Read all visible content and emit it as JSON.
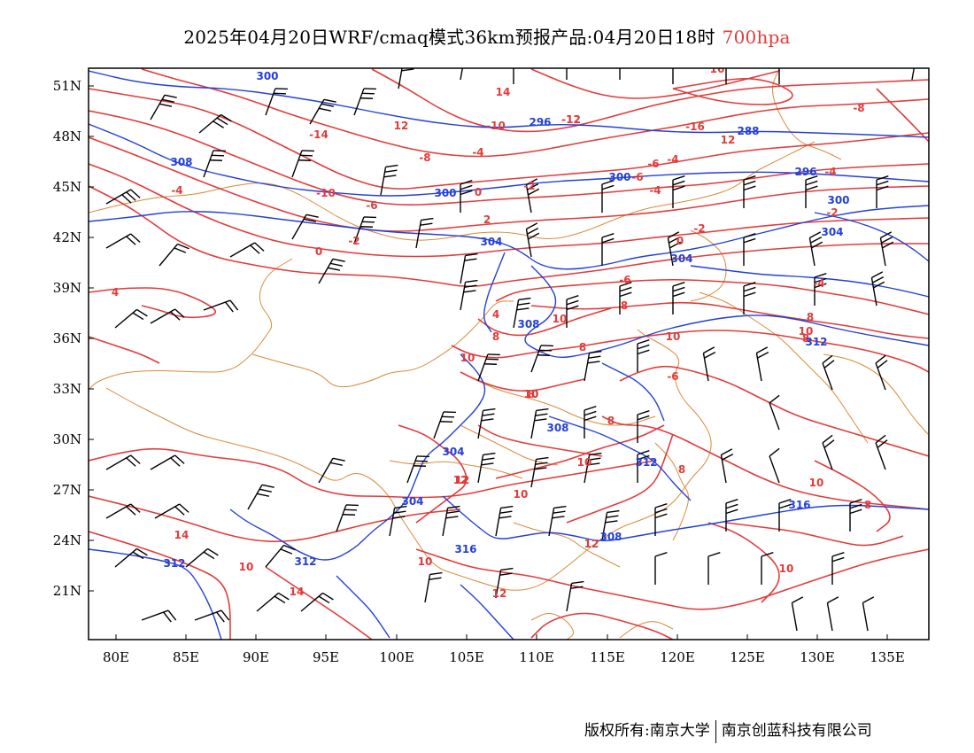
{
  "title": {
    "main": "2025年04月20日WRF/cmaq模式36km预报产品:04月20日18时",
    "level": "700hpa"
  },
  "axes": {
    "lat_labels": [
      "51N",
      "48N",
      "45N",
      "42N",
      "39N",
      "36N",
      "33N",
      "30N",
      "27N",
      "24N",
      "21N"
    ],
    "lon_labels": [
      "80E",
      "85E",
      "90E",
      "95E",
      "100E",
      "105E",
      "110E",
      "115E",
      "120E",
      "125E",
      "130E",
      "135E"
    ]
  },
  "contours": {
    "temperature_color": "#e23b3b",
    "height_color": "#2440d8",
    "border_color": "#d98a3a",
    "temperature_labels": [
      "16",
      "14",
      "12",
      "-10",
      "-10",
      "-16",
      "12",
      "-14",
      "-12",
      "-8",
      "-6",
      "-4",
      "-4",
      "-8",
      "-6",
      "-4",
      "-4",
      "-6",
      "-2",
      "0",
      "-2",
      "2",
      "-2",
      "0",
      "0",
      "-2",
      "4",
      "-4",
      "-6",
      "8",
      "8",
      "10",
      "10",
      "8",
      "10",
      "8",
      "-6",
      "-4",
      "4",
      "8",
      "8",
      "10",
      "8",
      "10",
      "10",
      "12",
      "14",
      "10",
      "14",
      "12",
      "12",
      "10",
      "10",
      "10",
      "8",
      "8",
      "10",
      "12",
      "10",
      "-12"
    ],
    "height_labels": [
      "300",
      "296",
      "288",
      "308",
      "300",
      "300",
      "296",
      "304",
      "304",
      "300",
      "304",
      "308",
      "304",
      "312",
      "308",
      "304",
      "312",
      "312",
      "316",
      "316",
      "308",
      "312"
    ]
  },
  "credit": {
    "left": "版权所有:南京大学",
    "right": "南京创蓝科技有限公司"
  }
}
